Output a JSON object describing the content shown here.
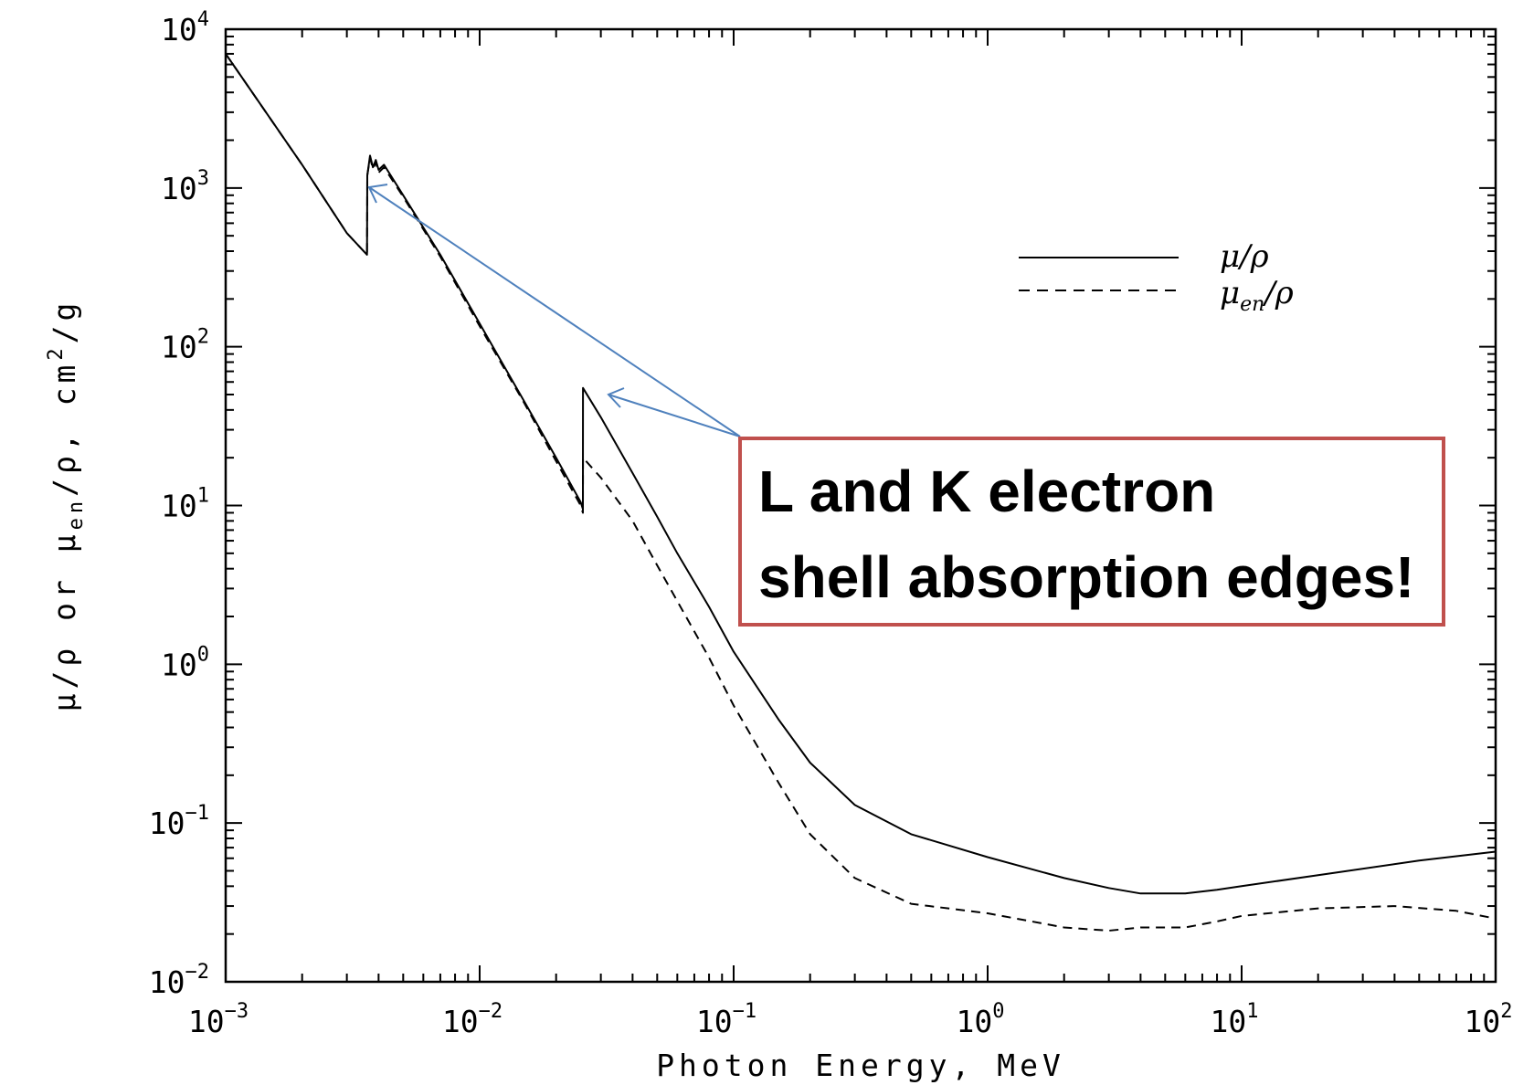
{
  "chart_data": {
    "type": "line",
    "xlabel": "Photon Energy, MeV",
    "ylabel_parts": [
      "μ/ρ or μ",
      "en",
      "/ρ, cm",
      "2",
      "/g"
    ],
    "x_scale": "log",
    "y_scale": "log",
    "xlim": [
      0.001,
      100
    ],
    "ylim": [
      0.01,
      10000
    ],
    "x_ticks": [
      {
        "value": 0.001,
        "base": "10",
        "exp": "−3"
      },
      {
        "value": 0.01,
        "base": "10",
        "exp": "−2"
      },
      {
        "value": 0.1,
        "base": "10",
        "exp": "−1"
      },
      {
        "value": 1,
        "base": "10",
        "exp": "0"
      },
      {
        "value": 10,
        "base": "10",
        "exp": "1"
      },
      {
        "value": 100,
        "base": "10",
        "exp": "2"
      }
    ],
    "y_ticks": [
      {
        "value": 0.01,
        "base": "10",
        "exp": "−2"
      },
      {
        "value": 0.1,
        "base": "10",
        "exp": "−1"
      },
      {
        "value": 1,
        "base": "10",
        "exp": "0"
      },
      {
        "value": 10,
        "base": "10",
        "exp": "1"
      },
      {
        "value": 100,
        "base": "10",
        "exp": "2"
      },
      {
        "value": 1000,
        "base": "10",
        "exp": "3"
      },
      {
        "value": 10000,
        "base": "10",
        "exp": "4"
      }
    ],
    "legend": {
      "position": "upper-right",
      "entries": [
        {
          "label_base": "μ",
          "label_sub": "",
          "label_rest": "/ρ",
          "style": "solid"
        },
        {
          "label_base": "μ",
          "label_sub": "en",
          "label_rest": "/ρ",
          "style": "dashed"
        }
      ]
    },
    "series": [
      {
        "name": "μ/ρ",
        "style": "solid",
        "color": "#000000",
        "points": [
          [
            0.001,
            7000
          ],
          [
            0.002,
            1400
          ],
          [
            0.003,
            520
          ],
          [
            0.0036,
            380
          ],
          [
            0.00361,
            1200
          ],
          [
            0.0037,
            1600
          ],
          [
            0.0038,
            1350
          ],
          [
            0.0039,
            1500
          ],
          [
            0.004,
            1300
          ],
          [
            0.0042,
            1400
          ],
          [
            0.005,
            900
          ],
          [
            0.007,
            380
          ],
          [
            0.01,
            140
          ],
          [
            0.015,
            45
          ],
          [
            0.02,
            20
          ],
          [
            0.025,
            10.5
          ],
          [
            0.0255,
            9.5
          ],
          [
            0.02551,
            55
          ],
          [
            0.03,
            36
          ],
          [
            0.04,
            16
          ],
          [
            0.05,
            8.5
          ],
          [
            0.06,
            5
          ],
          [
            0.08,
            2.3
          ],
          [
            0.1,
            1.2
          ],
          [
            0.15,
            0.45
          ],
          [
            0.2,
            0.24
          ],
          [
            0.3,
            0.13
          ],
          [
            0.5,
            0.085
          ],
          [
            1,
            0.061
          ],
          [
            2,
            0.045
          ],
          [
            3,
            0.039
          ],
          [
            4,
            0.036
          ],
          [
            5,
            0.036
          ],
          [
            6,
            0.036
          ],
          [
            8,
            0.038
          ],
          [
            10,
            0.04
          ],
          [
            20,
            0.047
          ],
          [
            50,
            0.058
          ],
          [
            100,
            0.066
          ]
        ]
      },
      {
        "name": "μen/ρ",
        "style": "dashed",
        "color": "#000000",
        "points": [
          [
            0.001,
            7000
          ],
          [
            0.002,
            1400
          ],
          [
            0.003,
            520
          ],
          [
            0.0036,
            380
          ],
          [
            0.00361,
            1200
          ],
          [
            0.0037,
            1550
          ],
          [
            0.0038,
            1320
          ],
          [
            0.0039,
            1450
          ],
          [
            0.004,
            1250
          ],
          [
            0.0042,
            1350
          ],
          [
            0.005,
            880
          ],
          [
            0.007,
            370
          ],
          [
            0.01,
            135
          ],
          [
            0.015,
            44
          ],
          [
            0.02,
            19
          ],
          [
            0.025,
            10
          ],
          [
            0.0255,
            9
          ],
          [
            0.02551,
            20
          ],
          [
            0.03,
            15
          ],
          [
            0.04,
            8
          ],
          [
            0.05,
            4.2
          ],
          [
            0.06,
            2.5
          ],
          [
            0.08,
            1.1
          ],
          [
            0.1,
            0.55
          ],
          [
            0.15,
            0.18
          ],
          [
            0.2,
            0.085
          ],
          [
            0.3,
            0.045
          ],
          [
            0.5,
            0.031
          ],
          [
            1,
            0.027
          ],
          [
            2,
            0.022
          ],
          [
            3,
            0.021
          ],
          [
            4,
            0.022
          ],
          [
            6,
            0.022
          ],
          [
            8,
            0.024
          ],
          [
            10,
            0.026
          ],
          [
            20,
            0.029
          ],
          [
            40,
            0.03
          ],
          [
            70,
            0.028
          ],
          [
            100,
            0.025
          ]
        ]
      }
    ],
    "annotations": [
      {
        "lines": [
          "L and K electron",
          "shell absorption edges!"
        ],
        "box_border_color": "#C0504D",
        "arrow_color": "#4F81BD",
        "arrow_targets": [
          [
            0.0038,
            1000
          ],
          [
            0.031,
            45
          ]
        ]
      }
    ]
  }
}
